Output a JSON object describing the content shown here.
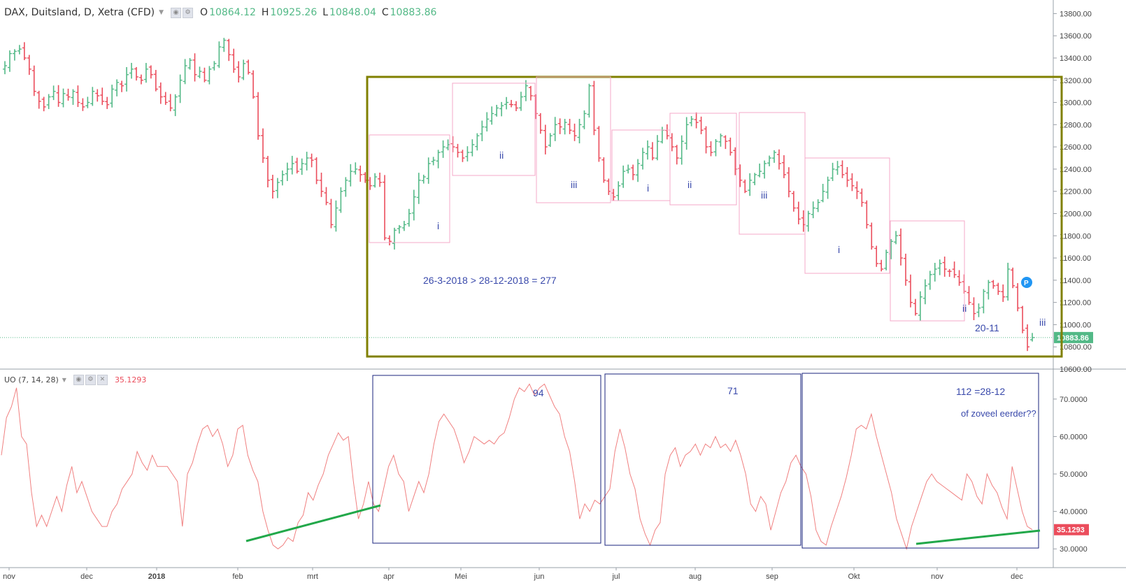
{
  "header": {
    "title": "DAX, Duitsland, D, Xetra (CFD)",
    "open_label": "O",
    "open": "10864.12",
    "high_label": "H",
    "high": "10925.26",
    "low_label": "L",
    "low": "10848.04",
    "close_label": "C",
    "close": "10883.86"
  },
  "indicator": {
    "title": "UO (7, 14, 28)",
    "value": "35.1293"
  },
  "colors": {
    "up": "#53b987",
    "down": "#eb4d5c",
    "osc": "#f08080",
    "olive": "#808000",
    "pink": "#f4a8c8",
    "navy": "#1a237e",
    "label": "#3949ab",
    "trend": "#22a84a"
  },
  "chart_data": [
    {
      "type": "ohlc",
      "title": "DAX, Duitsland, D, Xetra (CFD)",
      "ylim": [
        10600,
        13900
      ],
      "y_ticks": [
        "13800.00",
        "13600.00",
        "13400.00",
        "13200.00",
        "13000.00",
        "12800.00",
        "12600.00",
        "12400.00",
        "12200.00",
        "12000.00",
        "11800.00",
        "11600.00",
        "11400.00",
        "11200.00",
        "11000.00",
        "10800.00",
        "10600.00"
      ],
      "x_ticks": [
        "nov",
        "dec",
        "2018",
        "feb",
        "mrt",
        "apr",
        "Mei",
        "jun",
        "jul",
        "aug",
        "sep",
        "Okt",
        "nov",
        "dec"
      ],
      "last_price": "10883.86",
      "last_bar": {
        "open": 10864.12,
        "high": 10925.26,
        "low": 10848.04,
        "close": 10883.86
      },
      "closes": [
        13330,
        13440,
        13460,
        13480,
        13400,
        13300,
        13100,
        13010,
        12960,
        13050,
        13100,
        13000,
        13080,
        13050,
        13100,
        13000,
        12960,
        13000,
        13100,
        13060,
        13010,
        12980,
        13120,
        13180,
        13150,
        13250,
        13300,
        13230,
        13200,
        13300,
        13250,
        13120,
        13050,
        13000,
        12950,
        13050,
        13200,
        13330,
        13380,
        13250,
        13280,
        13200,
        13300,
        13350,
        13500,
        13560,
        13430,
        13300,
        13230,
        13350,
        13270,
        13050,
        12700,
        12500,
        12300,
        12200,
        12280,
        12350,
        12400,
        12450,
        12380,
        12450,
        12500,
        12480,
        12300,
        12200,
        12100,
        11900,
        12050,
        12200,
        12300,
        12380,
        12400,
        12350,
        12300,
        12250,
        12330,
        12280,
        11780,
        11750,
        11850,
        11880,
        11900,
        12000,
        12150,
        12300,
        12330,
        12450,
        12480,
        12550,
        12600,
        12620,
        12600,
        12550,
        12500,
        12550,
        12620,
        12700,
        12780,
        12850,
        12900,
        12950,
        12970,
        13000,
        12980,
        12950,
        13050,
        13150,
        13060,
        12900,
        12750,
        12600,
        12700,
        12800,
        12780,
        12820,
        12750,
        12700,
        12800,
        12900,
        13150,
        12750,
        12500,
        12300,
        12200,
        12150,
        12250,
        12380,
        12400,
        12350,
        12450,
        12550,
        12600,
        12500,
        12650,
        12750,
        12700,
        12600,
        12500,
        12650,
        12800,
        12850,
        12820,
        12750,
        12600,
        12550,
        12650,
        12700,
        12650,
        12550,
        12400,
        12300,
        12200,
        12300,
        12350,
        12380,
        12450,
        12500,
        12550,
        12450,
        12350,
        12200,
        12050,
        11950,
        11900,
        12000,
        12050,
        12100,
        12200,
        12300,
        12400,
        12420,
        12350,
        12300,
        12250,
        12200,
        12100,
        11900,
        11700,
        11550,
        11500,
        11650,
        11750,
        11800,
        11600,
        11400,
        11200,
        11100,
        11250,
        11350,
        11450,
        11500,
        11550,
        11500,
        11480,
        11450,
        11380,
        11300,
        11200,
        11100,
        11150,
        11300,
        11380,
        11350,
        11300,
        11250,
        11500,
        11350,
        11150,
        10950,
        10800,
        10883.86
      ]
    },
    {
      "type": "line",
      "title": "UO (7, 14, 28)",
      "ylim": [
        25,
        78
      ],
      "y_ticks": [
        "70.0000",
        "60.0000",
        "50.0000",
        "40.0000",
        "30.0000"
      ],
      "current_value": "35.1293",
      "values": [
        55,
        65,
        68,
        73,
        60,
        58,
        45,
        36,
        39,
        36,
        40,
        44,
        40,
        47,
        52,
        45,
        48,
        44,
        40,
        38,
        36,
        36,
        40,
        42,
        46,
        48,
        50,
        56,
        53,
        51,
        55,
        52,
        52,
        52,
        50,
        48,
        36,
        50,
        53,
        58,
        62,
        63,
        60,
        62,
        58,
        52,
        55,
        62,
        63,
        55,
        51,
        48,
        40,
        35,
        31,
        30,
        31,
        33,
        32,
        37,
        39,
        45,
        43,
        47,
        50,
        55,
        58,
        61,
        59,
        60,
        48,
        38,
        42,
        48,
        42,
        40,
        46,
        52,
        55,
        50,
        48,
        40,
        44,
        48,
        45,
        50,
        58,
        64,
        66,
        64,
        62,
        58,
        53,
        56,
        60,
        59,
        58,
        59,
        58,
        60,
        61,
        65,
        70,
        73,
        72,
        74,
        71,
        73,
        74,
        71,
        68,
        66,
        60,
        56,
        48,
        38,
        42,
        40,
        43,
        42,
        44,
        46,
        56,
        62,
        57,
        50,
        46,
        38,
        34,
        31,
        35,
        37,
        50,
        55,
        57,
        52,
        55,
        56,
        58,
        55,
        58,
        57,
        60,
        57,
        58,
        56,
        59,
        55,
        50,
        42,
        40,
        44,
        42,
        35,
        40,
        45,
        48,
        53,
        55,
        52,
        50,
        44,
        35,
        32,
        31,
        36,
        40,
        44,
        49,
        55,
        62,
        63,
        62,
        66,
        60,
        55,
        50,
        45,
        38,
        34,
        30,
        36,
        40,
        44,
        48,
        50,
        48,
        47,
        46,
        45,
        44,
        43,
        50,
        48,
        44,
        42,
        50,
        47,
        45,
        41,
        38,
        52,
        46,
        40,
        36,
        35.1293
      ]
    }
  ],
  "annotations": {
    "price_label": "26-3-2018  > 28-12-2018 = 277",
    "date_label": "20-11",
    "wave_i": "i",
    "wave_ii": "ii",
    "wave_iii": "iii",
    "count_94": "94",
    "count_71": "71",
    "count_112": "112 =28-12",
    "question": "of zoveel eerder??",
    "marker": "P"
  }
}
